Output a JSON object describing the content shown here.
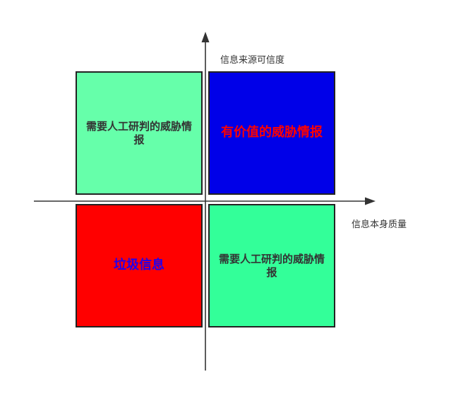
{
  "diagram": {
    "y_axis_label": "信息来源可信度",
    "x_axis_label": "信息本身质量",
    "quadrants": {
      "top_left": {
        "label": "需要人工研判的威胁情报",
        "fill": "#66FFAA",
        "text_color": "#333333"
      },
      "top_right": {
        "label": "有价值的威胁情报",
        "fill": "#0000E8",
        "text_color": "#FF0000"
      },
      "bottom_left": {
        "label": "垃圾信息",
        "fill": "#FF0000",
        "text_color": "#2200EE"
      },
      "bottom_right": {
        "label": "需要人工研判的威胁情报",
        "fill": "#33FF99",
        "text_color": "#333333"
      }
    },
    "axis_color": "#333333"
  }
}
